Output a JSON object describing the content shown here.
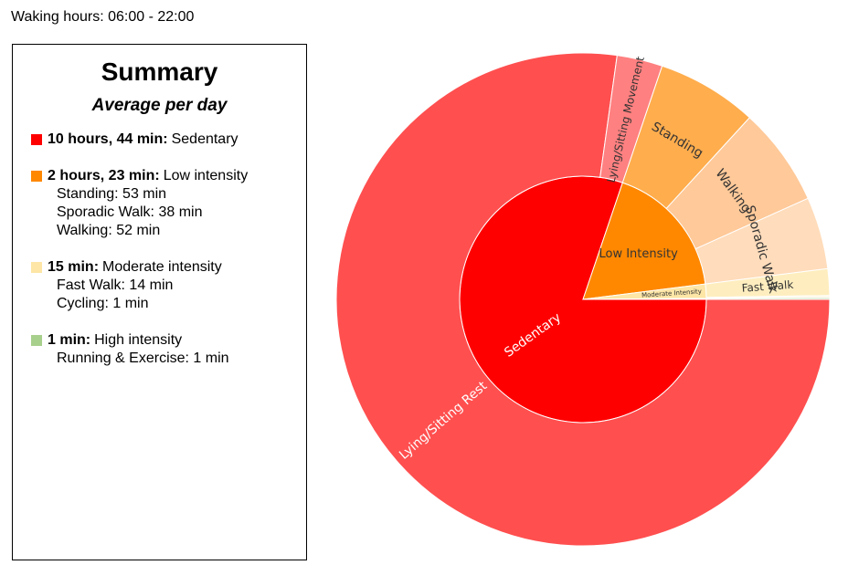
{
  "header": {
    "waking_hours": "Waking hours: 06:00 - 22:00"
  },
  "summary": {
    "title": "Summary",
    "subtitle": "Average per day",
    "groups": [
      {
        "color": "#ff0000",
        "amount": "10 hours, 44 min:",
        "label": "Sedentary",
        "items": []
      },
      {
        "color": "#ff8800",
        "amount": "2 hours, 23 min:",
        "label": "Low intensity",
        "items": [
          "Standing: 53 min",
          "Sporadic Walk: 38 min",
          "Walking: 52 min"
        ]
      },
      {
        "color": "#fde6a6",
        "amount": "15 min:",
        "label": "Moderate intensity",
        "items": [
          "Fast Walk: 14 min",
          "Cycling: 1 min"
        ]
      },
      {
        "color": "#a8d08d",
        "amount": "1 min:",
        "label": "High intensity",
        "items": [
          "Running & Exercise: 1 min"
        ]
      }
    ]
  },
  "chart_data": {
    "type": "sunburst",
    "unit": "minutes",
    "inner": [
      {
        "label": "Sedentary",
        "value": 644,
        "color": "#ff0000",
        "text_color": "#ffffff"
      },
      {
        "label": "Low Intensity",
        "value": 143,
        "color": "#ff8800",
        "text_color": "#333333"
      },
      {
        "label": "Moderate Intensity",
        "value": 15,
        "color": "#fde6a6",
        "text_color": "#333333"
      },
      {
        "label": "",
        "value": 1,
        "color": "#a8d08d",
        "text_color": "#333333"
      }
    ],
    "outer": [
      {
        "label": "Lying/Sitting Rest",
        "parent": "Sedentary",
        "value": 620,
        "color": "#ff4f4f",
        "text_color": "#ffffff"
      },
      {
        "label": "Lying/Sitting Movement",
        "parent": "Sedentary",
        "value": 24,
        "color": "#ff8080",
        "text_color": "#333333"
      },
      {
        "label": "Standing",
        "parent": "Low Intensity",
        "value": 53,
        "color": "#ffad4d",
        "text_color": "#333333"
      },
      {
        "label": "Walking",
        "parent": "Low Intensity",
        "value": 52,
        "color": "#ffc999",
        "text_color": "#333333"
      },
      {
        "label": "Sporadic Walk",
        "parent": "Low Intensity",
        "value": 38,
        "color": "#ffdcbb",
        "text_color": "#333333"
      },
      {
        "label": "Fast Walk",
        "parent": "Moderate Intensity",
        "value": 14,
        "color": "#feeebf",
        "text_color": "#333333"
      },
      {
        "label": "",
        "parent": "Moderate Intensity",
        "value": 1,
        "color": "#fef6df",
        "text_color": "#333333"
      },
      {
        "label": "",
        "parent": "",
        "value": 1,
        "color": "#cfe5c0",
        "text_color": "#333333"
      }
    ]
  }
}
